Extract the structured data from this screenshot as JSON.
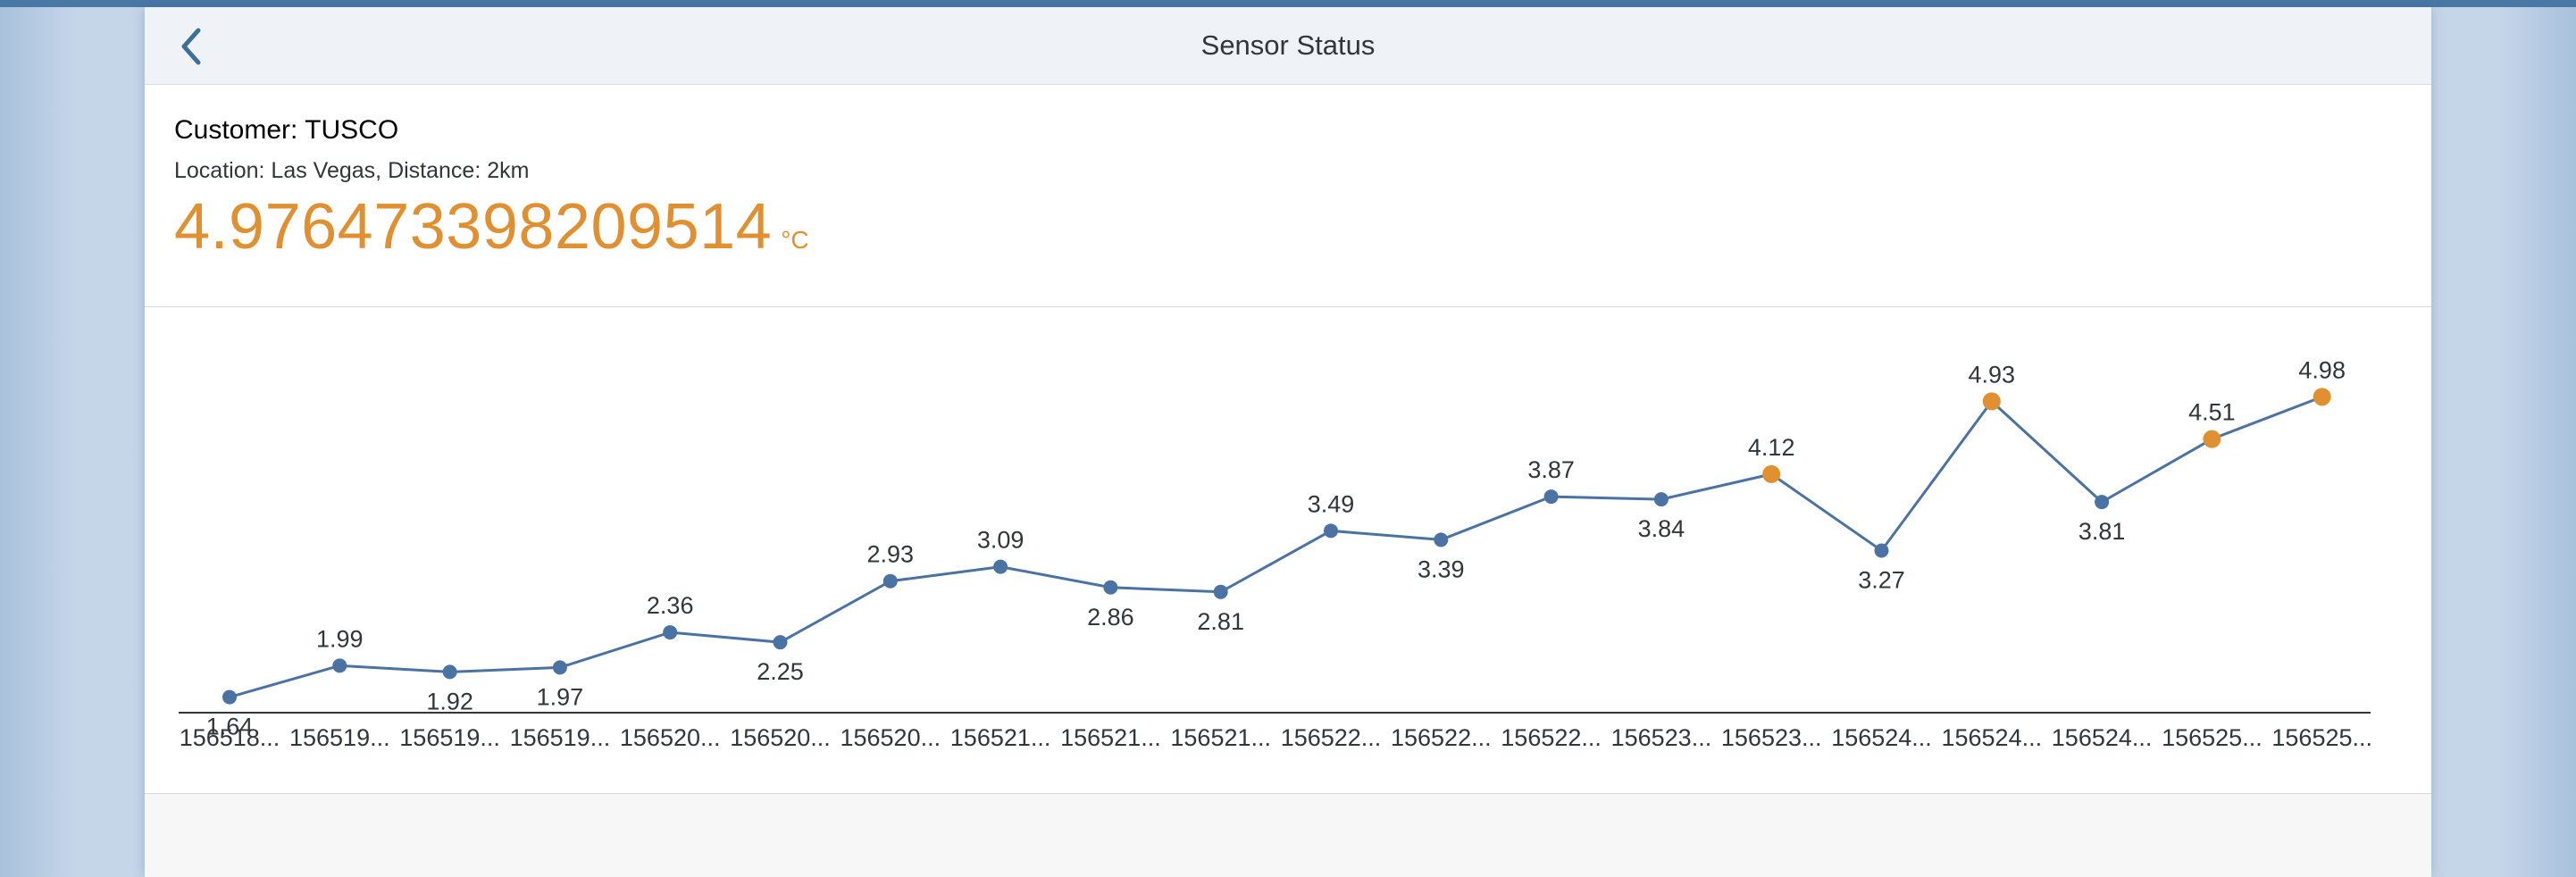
{
  "header": {
    "title": "Sensor Status",
    "back_icon": "chevron-left-icon"
  },
  "info": {
    "customer": "Customer: TUSCO",
    "location": "Location: Las Vegas, Distance: 2km",
    "value": "4.976473398209514",
    "unit": "°C"
  },
  "colors": {
    "normal": "#4a73a3",
    "warning": "#e09030",
    "line": "#4a73a3"
  },
  "chart_data": {
    "type": "line",
    "x": [
      "156518...",
      "156519...",
      "156519...",
      "156519...",
      "156520...",
      "156520...",
      "156520...",
      "156521...",
      "156521...",
      "156521...",
      "156522...",
      "156522...",
      "156522...",
      "156523...",
      "156523...",
      "156524...",
      "156524...",
      "156524...",
      "156525...",
      "156525..."
    ],
    "values": [
      1.64,
      1.99,
      1.92,
      1.97,
      2.36,
      2.25,
      2.93,
      3.09,
      2.86,
      2.81,
      3.49,
      3.39,
      3.87,
      3.84,
      4.12,
      3.27,
      4.93,
      3.81,
      4.51,
      4.98
    ],
    "labels": [
      "1.64",
      "1.99",
      "1.92",
      "1.97",
      "2.36",
      "2.25",
      "2.93",
      "3.09",
      "2.86",
      "2.81",
      "3.49",
      "3.39",
      "3.87",
      "3.84",
      "4.12",
      "3.27",
      "4.93",
      "3.81",
      "4.51",
      "4.98"
    ],
    "label_position": [
      "below",
      "above",
      "below",
      "below",
      "above",
      "below",
      "above",
      "above",
      "below",
      "below",
      "above",
      "below",
      "above",
      "below",
      "above",
      "below",
      "above",
      "below",
      "above",
      "above"
    ],
    "status": [
      "normal",
      "normal",
      "normal",
      "normal",
      "normal",
      "normal",
      "normal",
      "normal",
      "normal",
      "normal",
      "normal",
      "normal",
      "normal",
      "normal",
      "warning",
      "normal",
      "warning",
      "normal",
      "warning",
      "warning"
    ],
    "title": "",
    "xlabel": "",
    "ylabel": "",
    "ylim": [
      1.0,
      5.5
    ],
    "grid": false,
    "legend": "none"
  }
}
